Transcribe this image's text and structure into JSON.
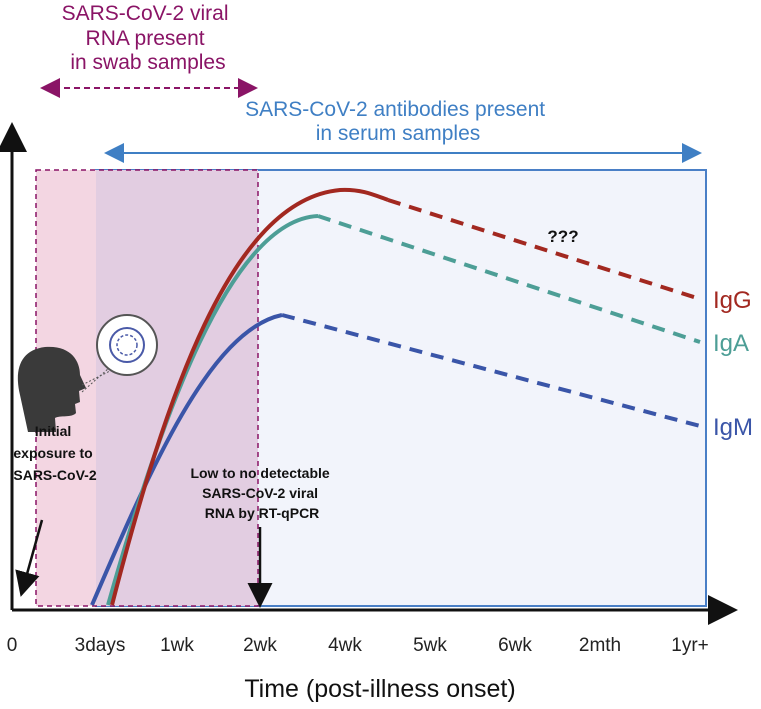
{
  "swab_label": {
    "lines": [
      "SARS-CoV-2 viral",
      "RNA present",
      "in swab samples"
    ]
  },
  "serum_label": {
    "lines": [
      "SARS-CoV-2 antibodies present",
      "in serum samples"
    ]
  },
  "annotations": {
    "exposure": [
      "Initial",
      "exposure to",
      "SARS-CoV-2"
    ],
    "detection": [
      "Low to no detectable",
      "SARS-CoV-2 viral",
      "RNA by RT-qPCR"
    ],
    "unknown": "???"
  },
  "curves": {
    "igg": "IgG",
    "iga": "IgA",
    "igm": "IgM"
  },
  "x_axis": {
    "ticks": [
      "0",
      "3days",
      "1wk",
      "2wk",
      "4wk",
      "5wk",
      "6wk",
      "2mth",
      "1yr+"
    ],
    "title": "Time (post-illness onset)"
  }
}
